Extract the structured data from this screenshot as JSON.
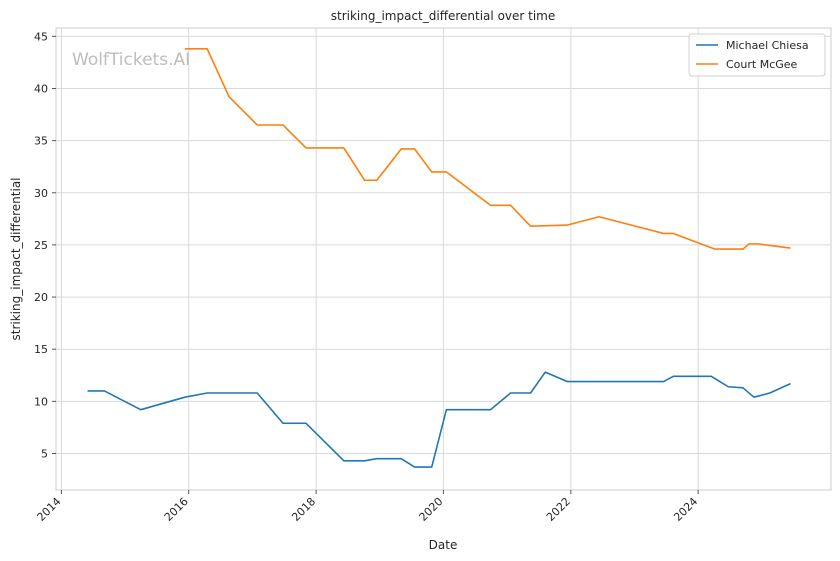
{
  "watermark": "WolfTickets.AI",
  "chart_data": {
    "type": "line",
    "title": "striking_impact_differential over time",
    "xlabel": "Date",
    "ylabel": "striking_impact_differential",
    "xlim": [
      "2013-12-01",
      "2026-02-01"
    ],
    "ylim": [
      1.5,
      45.8
    ],
    "x_ticks": [
      "2014-01-01",
      "2016-01-01",
      "2018-01-01",
      "2020-01-01",
      "2022-01-01",
      "2024-01-01"
    ],
    "x_tick_labels": [
      "2014",
      "2016",
      "2018",
      "2020",
      "2022",
      "2024"
    ],
    "y_ticks": [
      5,
      10,
      15,
      20,
      25,
      30,
      35,
      40,
      45
    ],
    "y_tick_labels": [
      "5",
      "10",
      "15",
      "20",
      "25",
      "30",
      "35",
      "40",
      "45"
    ],
    "grid": true,
    "legend_position": "top-right",
    "series": [
      {
        "name": "Michael Chiesa",
        "color": "#1f77b4",
        "x": [
          "2014-05-31",
          "2014-09-05",
          "2015-04-01",
          "2015-12-10",
          "2016-04-16",
          "2016-07-23",
          "2017-01-28",
          "2017-06-25",
          "2017-11-04",
          "2018-06-09",
          "2018-10-06",
          "2018-12-15",
          "2019-05-04",
          "2019-07-20",
          "2019-10-26",
          "2020-01-18",
          "2020-04-18",
          "2020-09-27",
          "2021-01-20",
          "2021-05-15",
          "2021-08-07",
          "2021-12-11",
          "2022-06-11",
          "2022-10-22",
          "2023-03-25",
          "2023-06-17",
          "2023-08-12",
          "2024-03-16",
          "2024-06-22",
          "2024-09-14",
          "2024-11-16",
          "2025-02-15",
          "2025-06-14"
        ],
        "y": [
          11.0,
          11.0,
          9.2,
          10.4,
          10.8,
          10.8,
          10.8,
          7.9,
          7.9,
          4.3,
          4.3,
          4.5,
          4.5,
          3.7,
          3.7,
          9.2,
          9.2,
          9.2,
          10.8,
          10.8,
          12.8,
          11.9,
          11.9,
          11.9,
          11.9,
          11.9,
          12.4,
          12.4,
          11.4,
          11.3,
          10.4,
          10.8,
          11.7
        ]
      },
      {
        "name": "Court McGee",
        "color": "#ff7f0e",
        "x": [
          "2015-12-10",
          "2016-04-16",
          "2016-08-20",
          "2017-01-28",
          "2017-06-25",
          "2017-11-04",
          "2018-06-09",
          "2018-10-06",
          "2018-12-15",
          "2019-05-04",
          "2019-07-20",
          "2019-10-26",
          "2020-01-18",
          "2020-09-27",
          "2021-01-20",
          "2021-05-15",
          "2021-12-11",
          "2022-06-11",
          "2023-06-17",
          "2023-08-12",
          "2024-04-06",
          "2024-09-14",
          "2024-10-19",
          "2024-12-07",
          "2025-06-14"
        ],
        "y": [
          43.8,
          43.8,
          39.2,
          36.5,
          36.5,
          34.3,
          34.3,
          31.2,
          31.2,
          34.2,
          34.2,
          32.0,
          32.0,
          28.8,
          28.8,
          26.8,
          26.9,
          27.7,
          26.1,
          26.1,
          24.6,
          24.6,
          25.1,
          25.1,
          24.7
        ]
      }
    ]
  }
}
